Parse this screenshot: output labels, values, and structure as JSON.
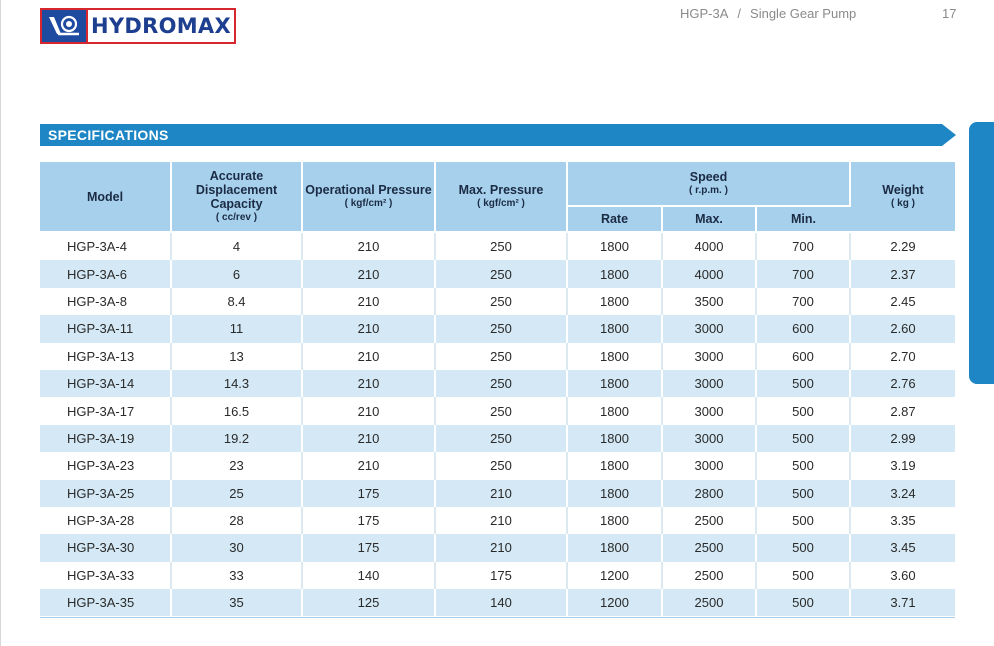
{
  "header": {
    "brand": "HYDROMAX",
    "doc_code": "HGP-3A",
    "separator": "/",
    "doc_title": "Single Gear Pump",
    "page_number": "17"
  },
  "colors": {
    "brand_blue": "#1e4aa0",
    "brand_red": "#d7262d",
    "accent_blue": "#1e86c4",
    "header_fill": "#a6d0ec",
    "row_stripe": "#d4e9f5"
  },
  "section": {
    "title": "SPECIFICATIONS"
  },
  "table": {
    "headers": {
      "model": "Model",
      "displacement": "Accurate Displacement Capacity",
      "displacement_unit": "( cc/rev )",
      "operational": "Operational Pressure",
      "operational_unit": "( kgf/cm² )",
      "max_pressure": "Max. Pressure",
      "max_pressure_unit": "( kgf/cm² )",
      "speed": "Speed",
      "speed_unit": "( r.p.m. )",
      "rate": "Rate",
      "max": "Max.",
      "min": "Min.",
      "weight": "Weight",
      "weight_unit": "( kg )"
    },
    "rows": [
      [
        "HGP-3A-4",
        "4",
        "210",
        "250",
        "1800",
        "4000",
        "700",
        "2.29"
      ],
      [
        "HGP-3A-6",
        "6",
        "210",
        "250",
        "1800",
        "4000",
        "700",
        "2.37"
      ],
      [
        "HGP-3A-8",
        "8.4",
        "210",
        "250",
        "1800",
        "3500",
        "700",
        "2.45"
      ],
      [
        "HGP-3A-11",
        "11",
        "210",
        "250",
        "1800",
        "3000",
        "600",
        "2.60"
      ],
      [
        "HGP-3A-13",
        "13",
        "210",
        "250",
        "1800",
        "3000",
        "600",
        "2.70"
      ],
      [
        "HGP-3A-14",
        "14.3",
        "210",
        "250",
        "1800",
        "3000",
        "500",
        "2.76"
      ],
      [
        "HGP-3A-17",
        "16.5",
        "210",
        "250",
        "1800",
        "3000",
        "500",
        "2.87"
      ],
      [
        "HGP-3A-19",
        "19.2",
        "210",
        "250",
        "1800",
        "3000",
        "500",
        "2.99"
      ],
      [
        "HGP-3A-23",
        "23",
        "210",
        "250",
        "1800",
        "3000",
        "500",
        "3.19"
      ],
      [
        "HGP-3A-25",
        "25",
        "175",
        "210",
        "1800",
        "2800",
        "500",
        "3.24"
      ],
      [
        "HGP-3A-28",
        "28",
        "175",
        "210",
        "1800",
        "2500",
        "500",
        "3.35"
      ],
      [
        "HGP-3A-30",
        "30",
        "175",
        "210",
        "1800",
        "2500",
        "500",
        "3.45"
      ],
      [
        "HGP-3A-33",
        "33",
        "140",
        "175",
        "1200",
        "2500",
        "500",
        "3.60"
      ],
      [
        "HGP-3A-35",
        "35",
        "125",
        "140",
        "1200",
        "2500",
        "500",
        "3.71"
      ]
    ]
  }
}
